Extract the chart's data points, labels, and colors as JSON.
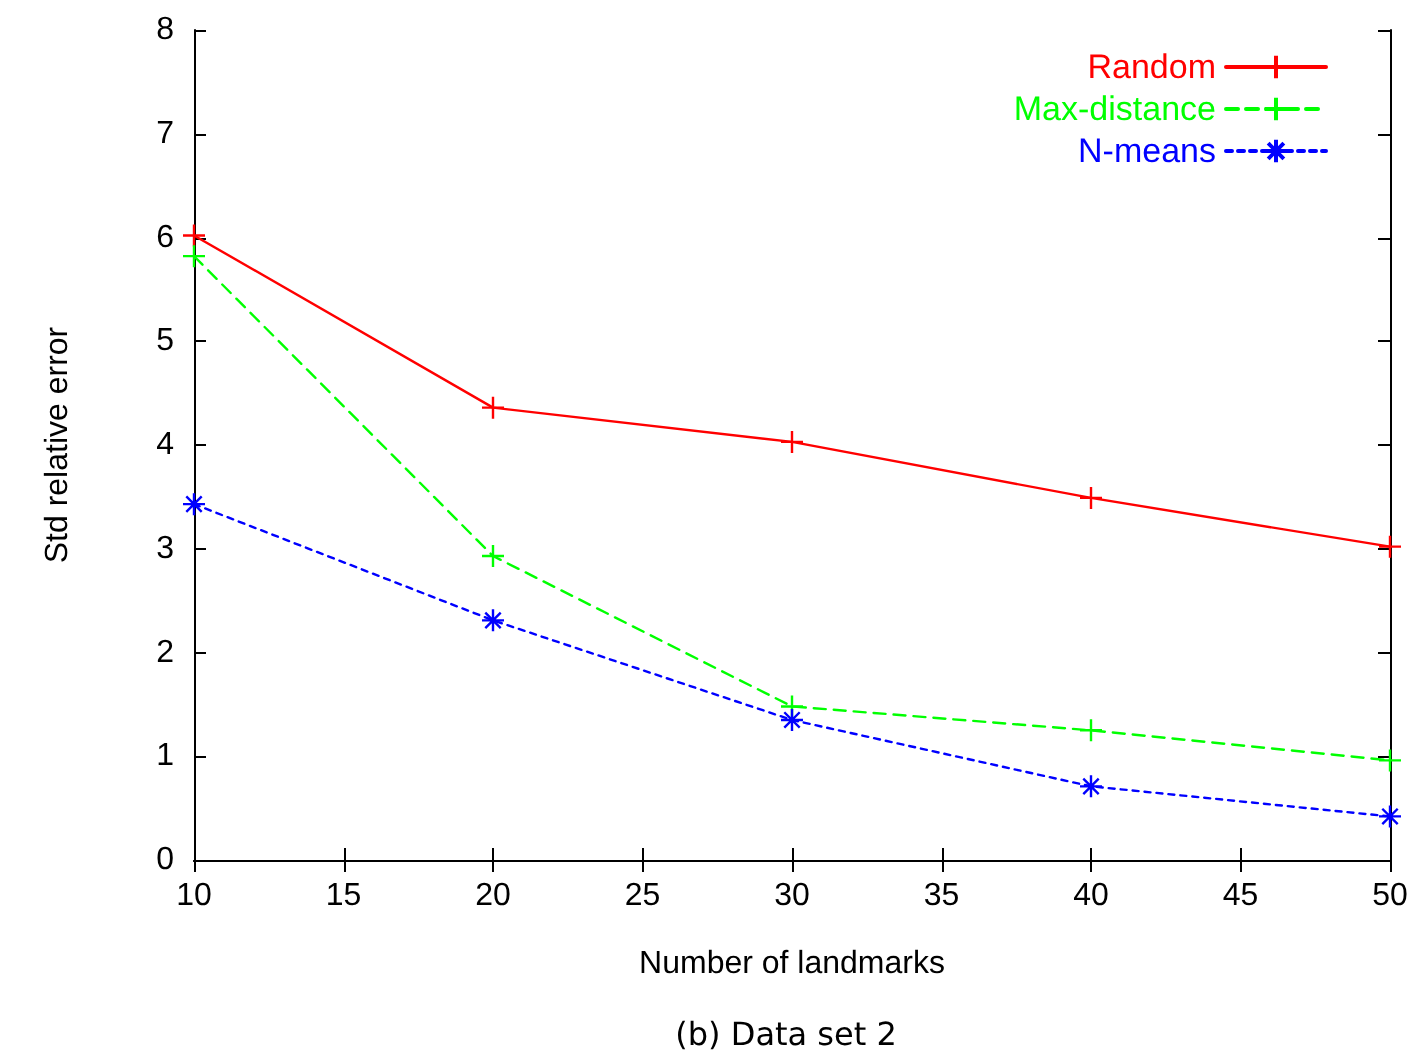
{
  "chart_data": {
    "type": "line",
    "xlabel": "Number of landmarks",
    "ylabel": "Std relative error",
    "annotations": [
      "(b) Data set 2"
    ],
    "x": [
      10,
      20,
      30,
      40,
      50
    ],
    "series": [
      {
        "name": "Random",
        "color": "#ff0000",
        "values": [
          6.02,
          4.36,
          4.03,
          3.49,
          3.02
        ],
        "marker": "cross",
        "line_style": "solid"
      },
      {
        "name": "Max-distance",
        "color": "#00ff00",
        "values": [
          5.82,
          2.93,
          1.48,
          1.25,
          0.96
        ],
        "marker": "cross",
        "line_style": "dashed"
      },
      {
        "name": "N-means",
        "color": "#0000ff",
        "values": [
          3.43,
          2.31,
          1.35,
          0.71,
          0.42
        ],
        "marker": "cross",
        "line_style": "dotted"
      }
    ],
    "xlim": [
      10,
      50
    ],
    "xticks": [
      10,
      15,
      20,
      25,
      30,
      35,
      40,
      45,
      50
    ],
    "ylim": [
      0,
      8
    ],
    "yticks": [
      0,
      1,
      2,
      3,
      4,
      5,
      6,
      7,
      8
    ],
    "grid": false,
    "legend": "top right"
  }
}
